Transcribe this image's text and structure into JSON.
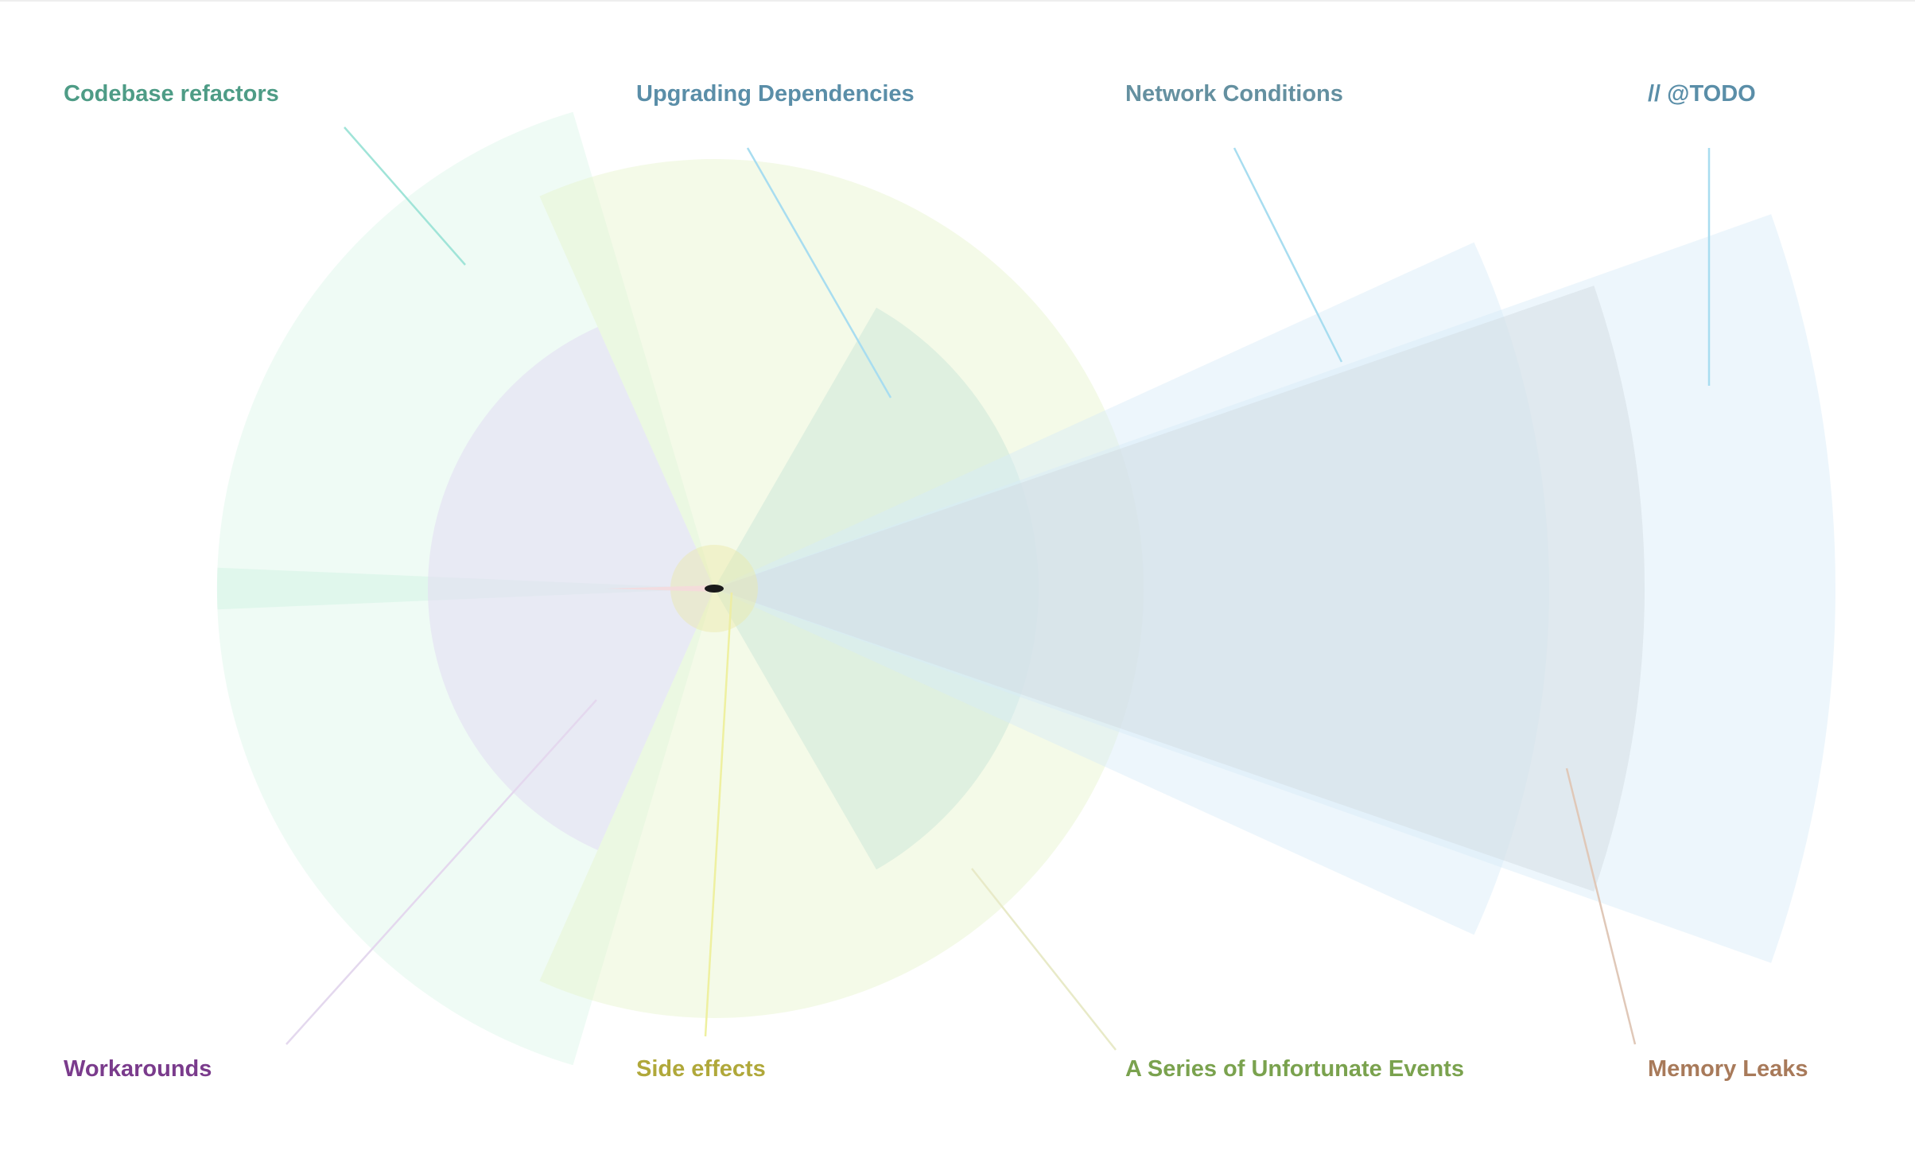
{
  "labels": [
    {
      "id": "codebase-refactors",
      "text": "Codebase refactors",
      "color": "#4e9c86"
    },
    {
      "id": "upgrading-dependencies",
      "text": "Upgrading Dependencies",
      "color": "#5a8ea8"
    },
    {
      "id": "network-conditions",
      "text": "Network Conditions",
      "color": "#6490a0"
    },
    {
      "id": "todo",
      "text": "// @TODO",
      "color": "#5a8ea8"
    },
    {
      "id": "workarounds",
      "text": "Workarounds",
      "color": "#7a3b8c"
    },
    {
      "id": "side-effects",
      "text": "Side effects",
      "color": "#b0a83a"
    },
    {
      "id": "unfortunate-events",
      "text": "A Series of Unfortunate Events",
      "color": "#7aa24e"
    },
    {
      "id": "memory-leaks",
      "text": "Memory Leaks",
      "color": "#a87a5a"
    }
  ],
  "colors": {
    "codebase": "#d6f5e6",
    "sideeffects": "#e6f3cc",
    "workarounds": "#e4e0f2",
    "dependencies": "#cde8d9",
    "network": "#d6ebf8",
    "memory": "#cfcfcf",
    "todo": "#d6ebf8"
  }
}
